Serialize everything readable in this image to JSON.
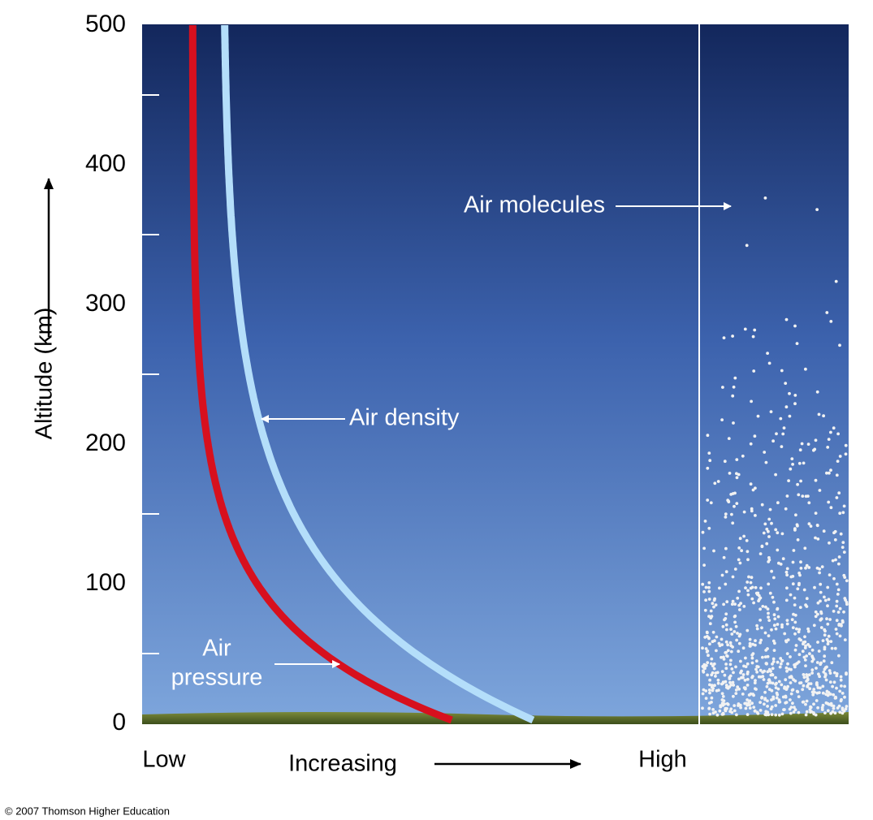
{
  "y_axis": {
    "label": "Altitude (km)",
    "lim": [
      0,
      500
    ],
    "ticks": [
      0,
      100,
      200,
      300,
      400,
      500
    ],
    "minor_ticks": [
      50,
      150,
      250,
      350,
      450
    ]
  },
  "x_axis": {
    "low": "Low",
    "label": "Increasing",
    "high": "High"
  },
  "labels": {
    "density": "Air density",
    "pressure": [
      "Air",
      "pressure"
    ],
    "molecules": "Air molecules"
  },
  "credit": "© 2007 Thomson Higher Education"
}
